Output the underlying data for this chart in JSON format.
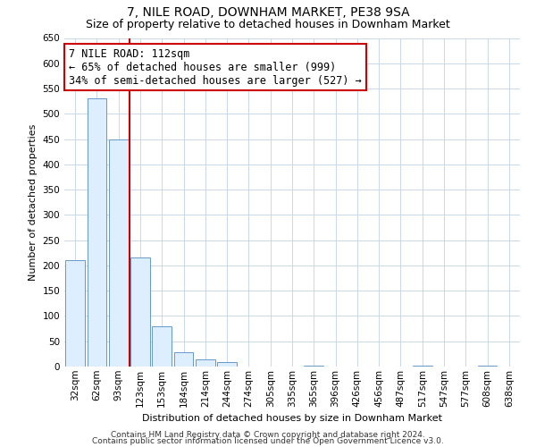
{
  "title": "7, NILE ROAD, DOWNHAM MARKET, PE38 9SA",
  "subtitle": "Size of property relative to detached houses in Downham Market",
  "xlabel": "Distribution of detached houses by size in Downham Market",
  "ylabel": "Number of detached properties",
  "bar_labels": [
    "32sqm",
    "62sqm",
    "93sqm",
    "123sqm",
    "153sqm",
    "184sqm",
    "214sqm",
    "244sqm",
    "274sqm",
    "305sqm",
    "335sqm",
    "365sqm",
    "396sqm",
    "426sqm",
    "456sqm",
    "487sqm",
    "517sqm",
    "547sqm",
    "577sqm",
    "608sqm",
    "638sqm"
  ],
  "bar_values": [
    210,
    530,
    450,
    215,
    80,
    28,
    15,
    8,
    0,
    0,
    0,
    2,
    0,
    0,
    0,
    0,
    1,
    0,
    0,
    1,
    0
  ],
  "bar_fill_color": "#ddeeff",
  "bar_edge_color": "#6699cc",
  "vline_color": "#cc0000",
  "ylim": [
    0,
    650
  ],
  "yticks": [
    0,
    50,
    100,
    150,
    200,
    250,
    300,
    350,
    400,
    450,
    500,
    550,
    600,
    650
  ],
  "annotation_title": "7 NILE ROAD: 112sqm",
  "annotation_line1": "← 65% of detached houses are smaller (999)",
  "annotation_line2": "34% of semi-detached houses are larger (527) →",
  "annotation_box_color": "#ffffff",
  "annotation_border_color": "#cc0000",
  "footer_line1": "Contains HM Land Registry data © Crown copyright and database right 2024.",
  "footer_line2": "Contains public sector information licensed under the Open Government Licence v3.0.",
  "background_color": "#ffffff",
  "grid_color": "#c8d8ea",
  "title_fontsize": 10,
  "subtitle_fontsize": 9,
  "annotation_fontsize": 8.5,
  "axis_label_fontsize": 8,
  "tick_fontsize": 7.5,
  "footer_fontsize": 6.5
}
